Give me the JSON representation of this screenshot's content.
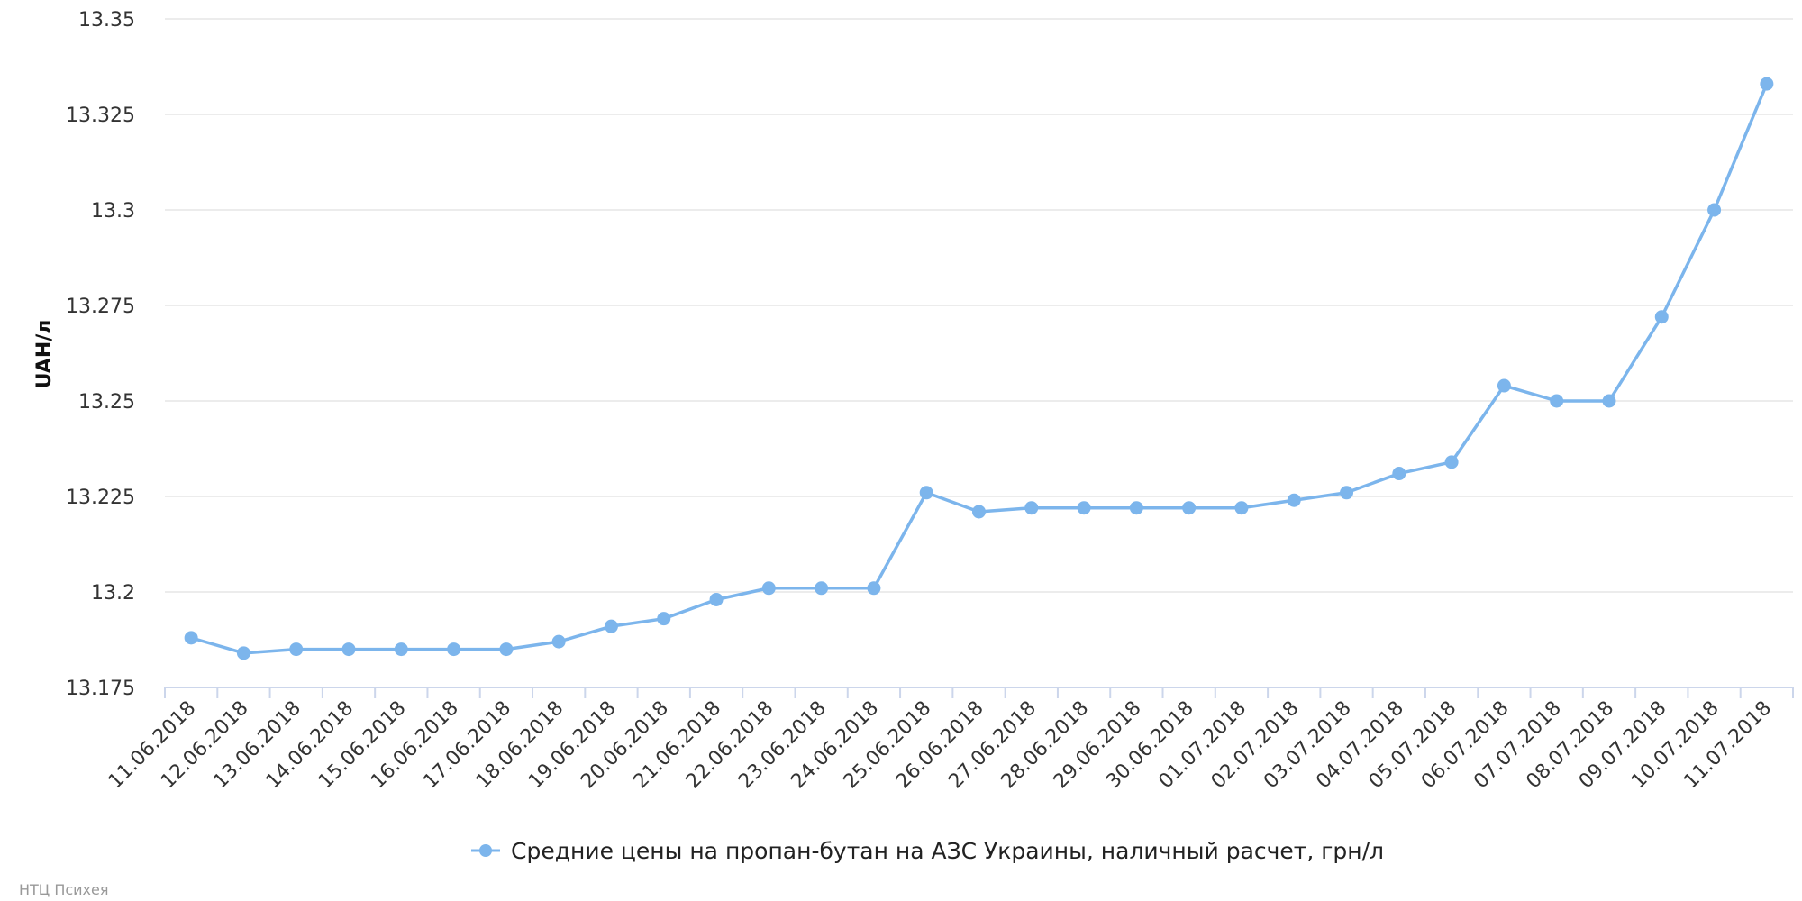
{
  "chart_data": {
    "type": "line",
    "title": "",
    "ylabel": "UAH/л",
    "xlabel": "",
    "ylim": [
      13.175,
      13.35
    ],
    "yticks": [
      "13.175",
      "13.2",
      "13.225",
      "13.25",
      "13.275",
      "13.3",
      "13.325",
      "13.35"
    ],
    "grid": true,
    "legend_position": "bottom-center",
    "categories": [
      "11.06.2018",
      "12.06.2018",
      "13.06.2018",
      "14.06.2018",
      "15.06.2018",
      "16.06.2018",
      "17.06.2018",
      "18.06.2018",
      "19.06.2018",
      "20.06.2018",
      "21.06.2018",
      "22.06.2018",
      "23.06.2018",
      "24.06.2018",
      "25.06.2018",
      "26.06.2018",
      "27.06.2018",
      "28.06.2018",
      "29.06.2018",
      "30.06.2018",
      "01.07.2018",
      "02.07.2018",
      "03.07.2018",
      "04.07.2018",
      "05.07.2018",
      "06.07.2018",
      "07.07.2018",
      "08.07.2018",
      "09.07.2018",
      "10.07.2018",
      "11.07.2018"
    ],
    "series": [
      {
        "name": "Средние цены на пропан-бутан на АЗС Украины, наличный расчет, грн/л",
        "color": "#7cb5ec",
        "values": [
          13.188,
          13.184,
          13.185,
          13.185,
          13.185,
          13.185,
          13.185,
          13.187,
          13.191,
          13.193,
          13.198,
          13.201,
          13.201,
          13.201,
          13.226,
          13.221,
          13.222,
          13.222,
          13.222,
          13.222,
          13.222,
          13.224,
          13.226,
          13.231,
          13.234,
          13.254,
          13.25,
          13.25,
          13.272,
          13.3,
          13.333
        ]
      }
    ]
  },
  "credit": "НТЦ Психея"
}
